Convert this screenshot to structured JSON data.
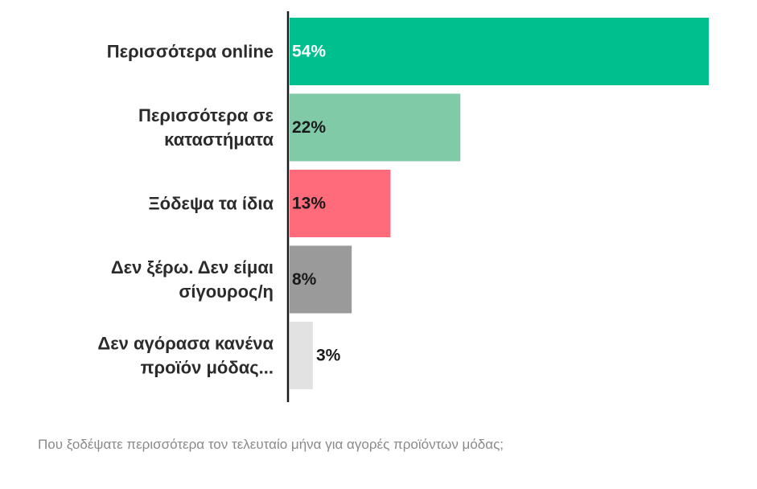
{
  "chart_data": {
    "type": "bar",
    "orientation": "horizontal",
    "categories": [
      [
        "Περισσότερα online"
      ],
      [
        "Περισσότερα σε",
        "καταστήματα"
      ],
      [
        "Ξόδεψα τα ίδια"
      ],
      [
        "Δεν ξέρω. Δεν είμαι",
        "σίγουρος/η"
      ],
      [
        "Δεν αγόρασα κανένα",
        "προϊόν μόδας..."
      ]
    ],
    "values": [
      54,
      22,
      13,
      8,
      3
    ],
    "value_labels": [
      "54%",
      "22%",
      "13%",
      "8%",
      "3%"
    ],
    "colors": [
      "#00bf8f",
      "#80caa8",
      "#ff6b7a",
      "#9a9a9a",
      "#e2e2e2"
    ],
    "value_label_colors": [
      "#ffffff",
      "#1a1a1a",
      "#1a1a1a",
      "#1a1a1a",
      "#1a1a1a"
    ],
    "xlim": [
      0,
      54
    ],
    "grid": false,
    "legend": "none"
  },
  "caption": "Που ξοδέψατε περισσότερα τον τελευταίο μήνα για αγορές προϊόντων μόδας;"
}
